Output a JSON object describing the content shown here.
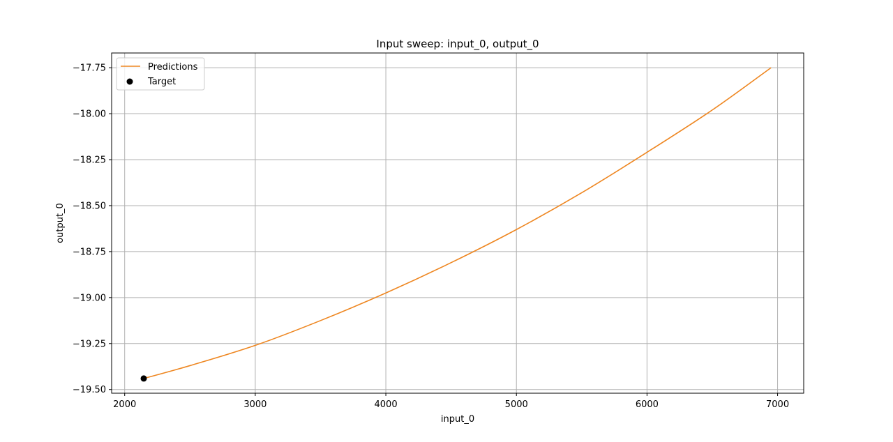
{
  "chart_data": {
    "type": "line",
    "title": "Input sweep: input_0, output_0",
    "xlabel": "input_0",
    "ylabel": "output_0",
    "xlim": [
      1900,
      7200
    ],
    "ylim": [
      -19.52,
      -17.67
    ],
    "x_ticks": [
      2000,
      3000,
      4000,
      5000,
      6000,
      7000
    ],
    "x_tick_labels": [
      "2000",
      "3000",
      "4000",
      "5000",
      "6000",
      "7000"
    ],
    "y_ticks": [
      -17.75,
      -18.0,
      -18.25,
      -18.5,
      -18.75,
      -19.0,
      -19.25,
      -19.5
    ],
    "y_tick_labels": [
      "−17.75",
      "−18.00",
      "−18.25",
      "−18.50",
      "−18.75",
      "−19.00",
      "−19.25",
      "−19.50"
    ],
    "grid": true,
    "legend_position": "top-left",
    "series": [
      {
        "name": "Predictions",
        "kind": "line",
        "color": "#ee8620",
        "x": [
          2146,
          2500,
          3000,
          3500,
          4000,
          4500,
          5000,
          5500,
          6000,
          6500,
          6950
        ],
        "y": [
          -19.44,
          -19.37,
          -19.26,
          -19.125,
          -18.975,
          -18.81,
          -18.63,
          -18.43,
          -18.21,
          -17.98,
          -17.75
        ]
      },
      {
        "name": "Target",
        "kind": "scatter",
        "color": "#000000",
        "x": [
          2146
        ],
        "y": [
          -19.44
        ]
      }
    ]
  }
}
